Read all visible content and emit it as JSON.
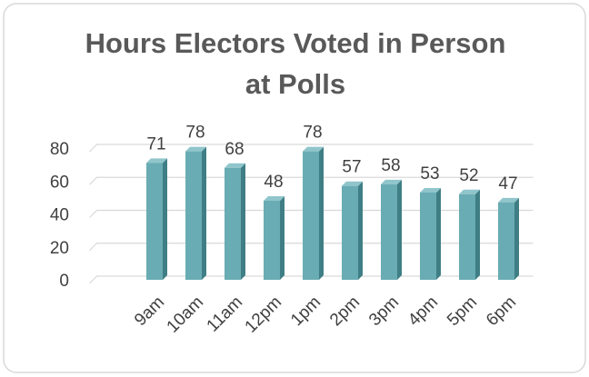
{
  "chart_data": {
    "type": "bar",
    "title": "Hours Electors Voted in Person at Polls",
    "categories": [
      "9am",
      "10am",
      "11am",
      "12pm",
      "1pm",
      "2pm",
      "3pm",
      "4pm",
      "5pm",
      "6pm"
    ],
    "values": [
      71,
      78,
      68,
      48,
      78,
      57,
      58,
      53,
      52,
      47
    ],
    "color": "#6aacb3",
    "ylim": [
      0,
      80
    ],
    "yticks": [
      0,
      20,
      40,
      60,
      80
    ],
    "grid": true
  }
}
